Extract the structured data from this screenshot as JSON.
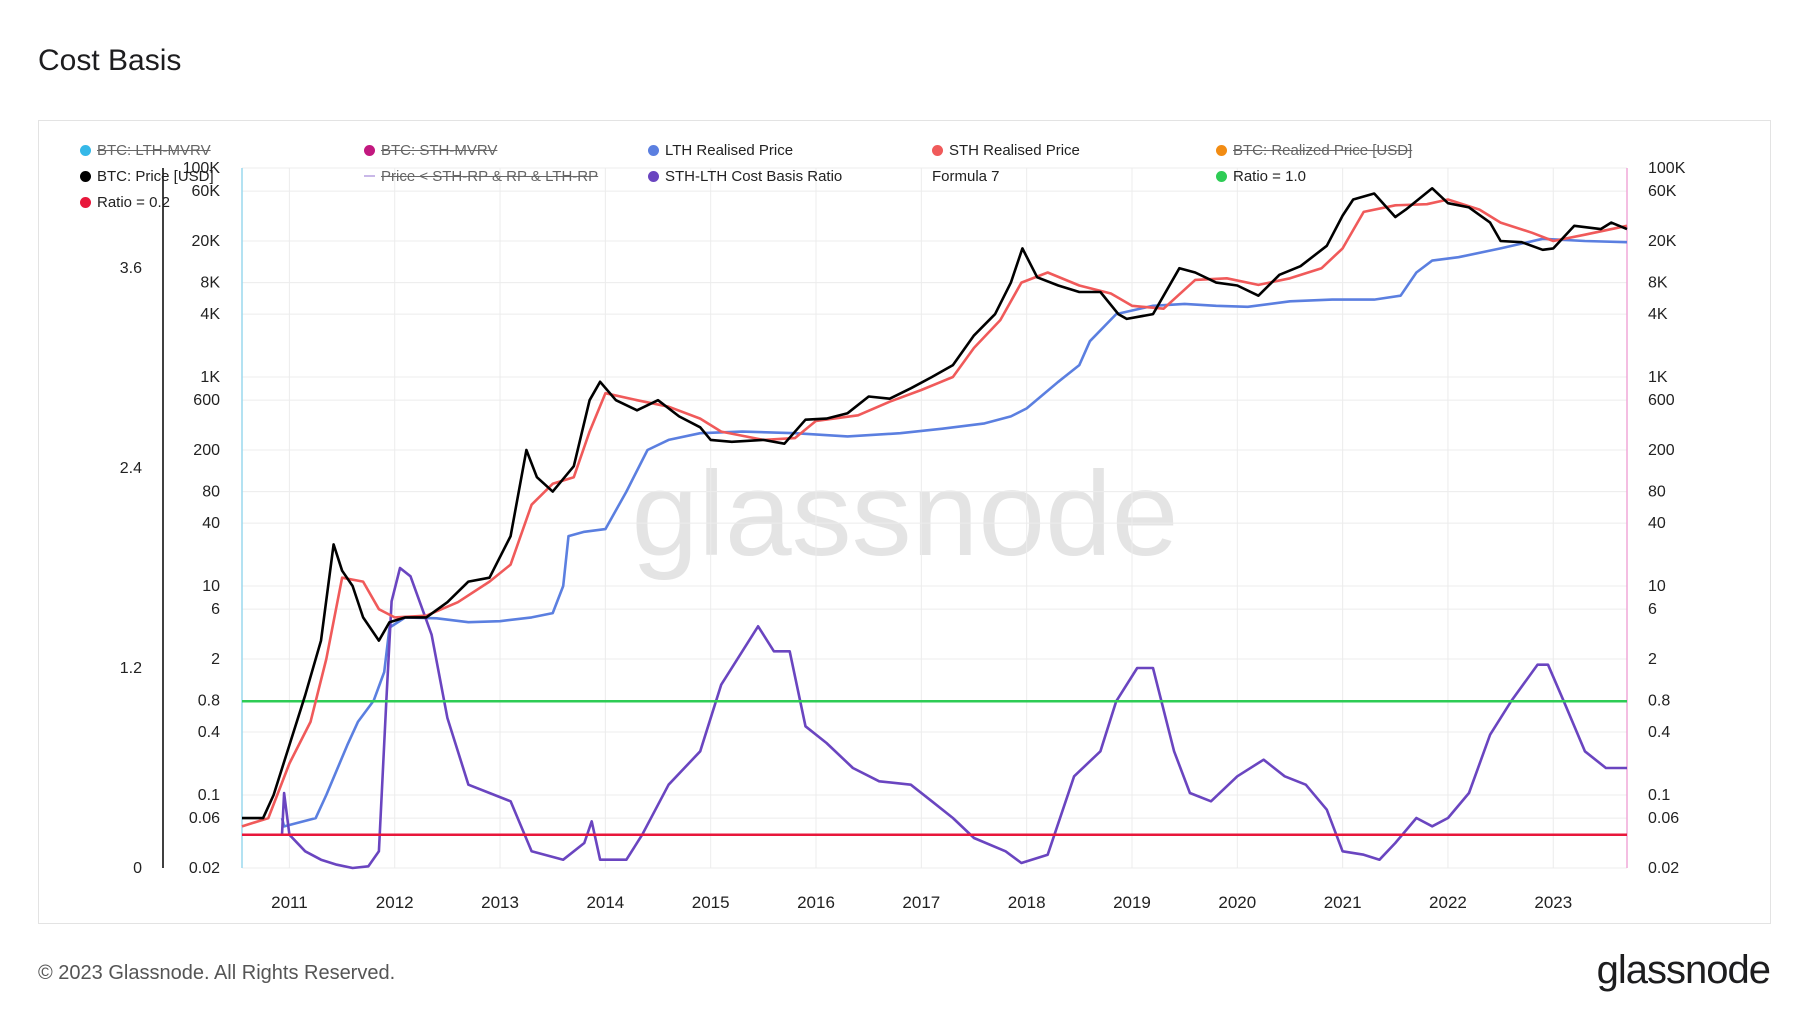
{
  "title": "Cost Basis",
  "footer": {
    "copyright": "© 2023 Glassnode. All Rights Reserved.",
    "logo": "glassnode"
  },
  "watermark": "glassnode",
  "legend": [
    {
      "label": "BTC: LTH-MVRV",
      "color": "#35b8e8",
      "hidden": true
    },
    {
      "label": "BTC: STH-MVRV",
      "color": "#c2187f",
      "hidden": true
    },
    {
      "label": "LTH Realised Price",
      "color": "#5b7fe0",
      "hidden": false
    },
    {
      "label": "STH Realised Price",
      "color": "#f05a5a",
      "hidden": false
    },
    {
      "label": "BTC: Realized Price [USD]",
      "color": "#f28c13",
      "hidden": true
    },
    {
      "label": "BTC: Price [USD]",
      "color": "#000000",
      "hidden": false
    },
    {
      "label": "Price < STH-RP & RP & LTH-RP",
      "color": "#c9b8e8",
      "hidden": true,
      "marker": "line"
    },
    {
      "label": "STH-LTH Cost Basis Ratio",
      "color": "#6a45c0",
      "hidden": false
    },
    {
      "label": "Formula 7",
      "color": "",
      "hidden": false,
      "marker": "none"
    },
    {
      "label": "Ratio = 1.0",
      "color": "#2ecc55",
      "hidden": false
    },
    {
      "label": "Ratio = 0.2",
      "color": "#e8173b",
      "hidden": false
    }
  ],
  "chart_data": {
    "type": "line",
    "x_axis": {
      "ticks": [
        "2011",
        "2012",
        "2013",
        "2014",
        "2015",
        "2016",
        "2017",
        "2018",
        "2019",
        "2020",
        "2021",
        "2022",
        "2023"
      ],
      "range": [
        2010.55,
        2023.7
      ]
    },
    "y_left_ratio": {
      "ticks": [
        "0",
        "1.2",
        "2.4",
        "3.6"
      ],
      "range": [
        0,
        4.2
      ]
    },
    "y_price_log": {
      "ticks": [
        "100K",
        "60K",
        "20K",
        "8K",
        "4K",
        "1K",
        "600",
        "200",
        "80",
        "40",
        "10",
        "6",
        "2",
        "0.8",
        "0.4",
        "0.1",
        "0.06",
        "0.02"
      ],
      "range": [
        0.02,
        100000
      ],
      "scale": "log"
    },
    "series": [
      {
        "name": "BTC: Price [USD]",
        "axis": "price",
        "color": "#000000",
        "points": [
          [
            2010.55,
            0.06
          ],
          [
            2010.75,
            0.06
          ],
          [
            2010.85,
            0.1
          ],
          [
            2011.0,
            0.3
          ],
          [
            2011.15,
            0.9
          ],
          [
            2011.3,
            3
          ],
          [
            2011.42,
            25
          ],
          [
            2011.5,
            14
          ],
          [
            2011.6,
            10
          ],
          [
            2011.7,
            5
          ],
          [
            2011.85,
            3
          ],
          [
            2011.95,
            4.5
          ],
          [
            2012.1,
            5
          ],
          [
            2012.3,
            5
          ],
          [
            2012.5,
            7
          ],
          [
            2012.7,
            11
          ],
          [
            2012.9,
            12
          ],
          [
            2013.1,
            30
          ],
          [
            2013.25,
            200
          ],
          [
            2013.35,
            110
          ],
          [
            2013.5,
            80
          ],
          [
            2013.7,
            140
          ],
          [
            2013.85,
            600
          ],
          [
            2013.95,
            900
          ],
          [
            2014.1,
            600
          ],
          [
            2014.3,
            480
          ],
          [
            2014.5,
            600
          ],
          [
            2014.7,
            420
          ],
          [
            2014.9,
            330
          ],
          [
            2015.0,
            250
          ],
          [
            2015.2,
            240
          ],
          [
            2015.5,
            250
          ],
          [
            2015.7,
            230
          ],
          [
            2015.9,
            390
          ],
          [
            2016.1,
            400
          ],
          [
            2016.3,
            450
          ],
          [
            2016.5,
            650
          ],
          [
            2016.7,
            620
          ],
          [
            2016.9,
            780
          ],
          [
            2017.1,
            1000
          ],
          [
            2017.3,
            1300
          ],
          [
            2017.5,
            2500
          ],
          [
            2017.7,
            4000
          ],
          [
            2017.85,
            8000
          ],
          [
            2017.96,
            17000
          ],
          [
            2018.1,
            9000
          ],
          [
            2018.3,
            7500
          ],
          [
            2018.5,
            6500
          ],
          [
            2018.7,
            6500
          ],
          [
            2018.87,
            4000
          ],
          [
            2018.95,
            3600
          ],
          [
            2019.2,
            4000
          ],
          [
            2019.45,
            11000
          ],
          [
            2019.6,
            10000
          ],
          [
            2019.8,
            8000
          ],
          [
            2020.0,
            7500
          ],
          [
            2020.2,
            6000
          ],
          [
            2020.4,
            9500
          ],
          [
            2020.6,
            11500
          ],
          [
            2020.85,
            18000
          ],
          [
            2021.0,
            35000
          ],
          [
            2021.1,
            50000
          ],
          [
            2021.3,
            57000
          ],
          [
            2021.5,
            34000
          ],
          [
            2021.6,
            40000
          ],
          [
            2021.85,
            64000
          ],
          [
            2022.0,
            46000
          ],
          [
            2022.2,
            42000
          ],
          [
            2022.4,
            30000
          ],
          [
            2022.5,
            20000
          ],
          [
            2022.7,
            19500
          ],
          [
            2022.9,
            16500
          ],
          [
            2023.0,
            17000
          ],
          [
            2023.2,
            28000
          ],
          [
            2023.45,
            26000
          ],
          [
            2023.55,
            30000
          ],
          [
            2023.7,
            26000
          ]
        ]
      },
      {
        "name": "STH Realised Price",
        "axis": "price",
        "color": "#f05a5a",
        "points": [
          [
            2010.55,
            0.05
          ],
          [
            2010.8,
            0.06
          ],
          [
            2011.0,
            0.2
          ],
          [
            2011.2,
            0.5
          ],
          [
            2011.35,
            2
          ],
          [
            2011.5,
            12
          ],
          [
            2011.7,
            11
          ],
          [
            2011.85,
            6
          ],
          [
            2012.0,
            5
          ],
          [
            2012.3,
            5.2
          ],
          [
            2012.6,
            7
          ],
          [
            2012.9,
            11
          ],
          [
            2013.1,
            16
          ],
          [
            2013.3,
            60
          ],
          [
            2013.5,
            95
          ],
          [
            2013.7,
            110
          ],
          [
            2013.85,
            300
          ],
          [
            2014.0,
            700
          ],
          [
            2014.3,
            600
          ],
          [
            2014.6,
            520
          ],
          [
            2014.9,
            400
          ],
          [
            2015.1,
            300
          ],
          [
            2015.5,
            250
          ],
          [
            2015.8,
            260
          ],
          [
            2016.0,
            380
          ],
          [
            2016.4,
            430
          ],
          [
            2016.7,
            580
          ],
          [
            2017.0,
            750
          ],
          [
            2017.3,
            1000
          ],
          [
            2017.5,
            1900
          ],
          [
            2017.75,
            3500
          ],
          [
            2017.95,
            8000
          ],
          [
            2018.2,
            10000
          ],
          [
            2018.5,
            7500
          ],
          [
            2018.8,
            6300
          ],
          [
            2019.0,
            4800
          ],
          [
            2019.3,
            4500
          ],
          [
            2019.6,
            8500
          ],
          [
            2019.9,
            8800
          ],
          [
            2020.2,
            7600
          ],
          [
            2020.5,
            8800
          ],
          [
            2020.8,
            11000
          ],
          [
            2021.0,
            17000
          ],
          [
            2021.2,
            38000
          ],
          [
            2021.5,
            44000
          ],
          [
            2021.8,
            45000
          ],
          [
            2022.0,
            50000
          ],
          [
            2022.3,
            40000
          ],
          [
            2022.5,
            30000
          ],
          [
            2022.8,
            24000
          ],
          [
            2023.0,
            20000
          ],
          [
            2023.3,
            23000
          ],
          [
            2023.7,
            28000
          ]
        ]
      },
      {
        "name": "LTH Realised Price",
        "axis": "price",
        "color": "#5b7fe0",
        "points": [
          [
            2010.93,
            0.06
          ],
          [
            2010.95,
            0.05
          ],
          [
            2011.25,
            0.06
          ],
          [
            2011.35,
            0.1
          ],
          [
            2011.55,
            0.3
          ],
          [
            2011.65,
            0.5
          ],
          [
            2011.8,
            0.8
          ],
          [
            2011.9,
            1.5
          ],
          [
            2011.95,
            4
          ],
          [
            2012.1,
            5
          ],
          [
            2012.4,
            4.9
          ],
          [
            2012.7,
            4.5
          ],
          [
            2013.0,
            4.6
          ],
          [
            2013.3,
            5
          ],
          [
            2013.5,
            5.5
          ],
          [
            2013.6,
            10
          ],
          [
            2013.65,
            30
          ],
          [
            2013.8,
            33
          ],
          [
            2014.0,
            35
          ],
          [
            2014.2,
            80
          ],
          [
            2014.4,
            200
          ],
          [
            2014.6,
            250
          ],
          [
            2014.9,
            290
          ],
          [
            2015.3,
            300
          ],
          [
            2015.8,
            290
          ],
          [
            2016.3,
            270
          ],
          [
            2016.8,
            290
          ],
          [
            2017.2,
            320
          ],
          [
            2017.6,
            360
          ],
          [
            2017.85,
            420
          ],
          [
            2018.0,
            500
          ],
          [
            2018.3,
            900
          ],
          [
            2018.5,
            1300
          ],
          [
            2018.6,
            2200
          ],
          [
            2018.85,
            4000
          ],
          [
            2019.2,
            4800
          ],
          [
            2019.5,
            5000
          ],
          [
            2019.8,
            4800
          ],
          [
            2020.1,
            4700
          ],
          [
            2020.5,
            5300
          ],
          [
            2020.9,
            5500
          ],
          [
            2021.3,
            5500
          ],
          [
            2021.55,
            6000
          ],
          [
            2021.7,
            10000
          ],
          [
            2021.85,
            13000
          ],
          [
            2022.1,
            14000
          ],
          [
            2022.5,
            17000
          ],
          [
            2022.9,
            21000
          ],
          [
            2023.3,
            20000
          ],
          [
            2023.7,
            19500
          ]
        ]
      },
      {
        "name": "STH-LTH Cost Basis Ratio",
        "axis": "ratio",
        "color": "#6a45c0",
        "points": [
          [
            2010.93,
            0.2
          ],
          [
            2010.95,
            0.45
          ],
          [
            2011.0,
            0.2
          ],
          [
            2011.15,
            0.1
          ],
          [
            2011.3,
            0.05
          ],
          [
            2011.45,
            0.02
          ],
          [
            2011.6,
            0.0
          ],
          [
            2011.75,
            0.01
          ],
          [
            2011.85,
            0.1
          ],
          [
            2011.92,
            1.0
          ],
          [
            2011.97,
            1.6
          ],
          [
            2012.05,
            1.8
          ],
          [
            2012.15,
            1.75
          ],
          [
            2012.35,
            1.4
          ],
          [
            2012.5,
            0.9
          ],
          [
            2012.7,
            0.5
          ],
          [
            2012.9,
            0.45
          ],
          [
            2013.1,
            0.4
          ],
          [
            2013.3,
            0.1
          ],
          [
            2013.6,
            0.05
          ],
          [
            2013.8,
            0.15
          ],
          [
            2013.87,
            0.28
          ],
          [
            2013.95,
            0.05
          ],
          [
            2014.2,
            0.05
          ],
          [
            2014.35,
            0.2
          ],
          [
            2014.6,
            0.5
          ],
          [
            2014.9,
            0.7
          ],
          [
            2015.1,
            1.1
          ],
          [
            2015.3,
            1.3
          ],
          [
            2015.45,
            1.45
          ],
          [
            2015.6,
            1.3
          ],
          [
            2015.75,
            1.3
          ],
          [
            2015.9,
            0.85
          ],
          [
            2016.1,
            0.75
          ],
          [
            2016.35,
            0.6
          ],
          [
            2016.6,
            0.52
          ],
          [
            2016.9,
            0.5
          ],
          [
            2017.1,
            0.4
          ],
          [
            2017.3,
            0.3
          ],
          [
            2017.5,
            0.18
          ],
          [
            2017.8,
            0.1
          ],
          [
            2017.95,
            0.03
          ],
          [
            2018.2,
            0.08
          ],
          [
            2018.45,
            0.55
          ],
          [
            2018.7,
            0.7
          ],
          [
            2018.85,
            1.0
          ],
          [
            2019.05,
            1.2
          ],
          [
            2019.2,
            1.2
          ],
          [
            2019.4,
            0.7
          ],
          [
            2019.55,
            0.45
          ],
          [
            2019.75,
            0.4
          ],
          [
            2020.0,
            0.55
          ],
          [
            2020.25,
            0.65
          ],
          [
            2020.45,
            0.55
          ],
          [
            2020.65,
            0.5
          ],
          [
            2020.85,
            0.35
          ],
          [
            2021.0,
            0.1
          ],
          [
            2021.2,
            0.08
          ],
          [
            2021.35,
            0.05
          ],
          [
            2021.5,
            0.15
          ],
          [
            2021.7,
            0.3
          ],
          [
            2021.85,
            0.25
          ],
          [
            2022.0,
            0.3
          ],
          [
            2022.2,
            0.45
          ],
          [
            2022.4,
            0.8
          ],
          [
            2022.6,
            1.0
          ],
          [
            2022.85,
            1.22
          ],
          [
            2022.95,
            1.22
          ],
          [
            2023.1,
            1.0
          ],
          [
            2023.3,
            0.7
          ],
          [
            2023.5,
            0.6
          ],
          [
            2023.7,
            0.6
          ]
        ]
      },
      {
        "name": "Ratio = 1.0",
        "axis": "ratio",
        "color": "#2ecc55",
        "points": [
          [
            2010.55,
            1.0
          ],
          [
            2023.7,
            1.0
          ]
        ]
      },
      {
        "name": "Ratio = 0.2",
        "axis": "ratio",
        "color": "#e8173b",
        "points": [
          [
            2010.55,
            0.2
          ],
          [
            2023.7,
            0.2
          ]
        ]
      }
    ]
  }
}
